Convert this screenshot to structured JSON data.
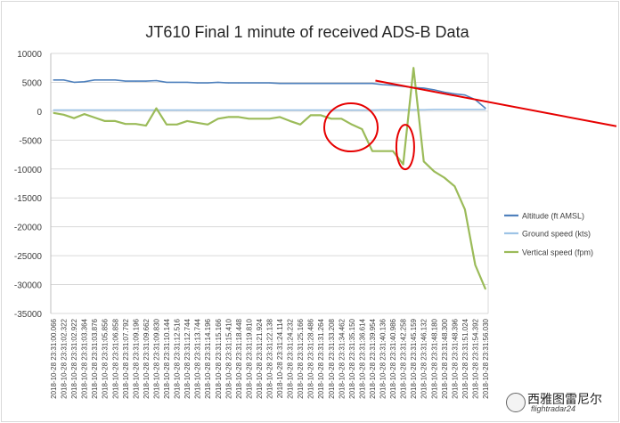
{
  "chart_data": {
    "type": "line",
    "title": "JT610 Final 1 minute of received ADS-B Data",
    "ylim": [
      -35000,
      10000
    ],
    "yticks": [
      10000,
      5000,
      0,
      -5000,
      -10000,
      -15000,
      -20000,
      -25000,
      -30000,
      -35000
    ],
    "grid": true,
    "legend_placement": "right",
    "categories": [
      "2018-10-28 23:31:00.066",
      "2018-10-28 23:31:02.322",
      "2018-10-28 23:31:02.922",
      "2018-10-28 23:31:03.364",
      "2018-10-28 23:31:03.876",
      "2018-10-28 23:31:05.856",
      "2018-10-28 23:31:06.858",
      "2018-10-28 23:31:07.792",
      "2018-10-28 23:31:09.196",
      "2018-10-28 23:31:09.662",
      "2018-10-28 23:31:09.830",
      "2018-10-28 23:31:10.144",
      "2018-10-28 23:31:12.516",
      "2018-10-28 23:31:12.744",
      "2018-10-28 23:31:13.744",
      "2018-10-28 23:31:14.196",
      "2018-10-28 23:31:15.166",
      "2018-10-28 23:31:15.410",
      "2018-10-28 23:31:18.448",
      "2018-10-28 23:31:19.810",
      "2018-10-28 23:31:21.924",
      "2018-10-28 23:31:22.138",
      "2018-10-28 23:31:24.114",
      "2018-10-28 23:31:24.232",
      "2018-10-28 23:31:25.166",
      "2018-10-28 23:31:28.486",
      "2018-10-28 23:31:31.264",
      "2018-10-28 23:31:33.208",
      "2018-10-28 23:31:34.462",
      "2018-10-28 23:31:35.150",
      "2018-10-28 23:31:36.614",
      "2018-10-28 23:31:39.954",
      "2018-10-28 23:31:40.136",
      "2018-10-28 23:31:40.986",
      "2018-10-28 23:31:42.258",
      "2018-10-28 23:31:45.159",
      "2018-10-28 23:31:46.132",
      "2018-10-28 23:31:48.180",
      "2018-10-28 23:31:48.300",
      "2018-10-28 23:31:48.396",
      "2018-10-28 23:31:51.024",
      "2018-10-28 23:31:54.392",
      "2018-10-28 23:31:56.030"
    ],
    "series": [
      {
        "name": "Altitude (ft AMSL)",
        "color": "#4f81bd",
        "values": [
          5400,
          5400,
          5000,
          5100,
          5400,
          5400,
          5400,
          5200,
          5200,
          5200,
          5300,
          5000,
          5000,
          5000,
          4900,
          4900,
          5000,
          4900,
          4900,
          4900,
          4900,
          4900,
          4800,
          4800,
          4800,
          4800,
          4800,
          4800,
          4800,
          4800,
          4800,
          4800,
          4600,
          4500,
          4300,
          4100,
          4000,
          3700,
          3300,
          3000,
          2800,
          2000,
          500
        ]
      },
      {
        "name": "Ground speed (kts)",
        "color": "#9dc3e6",
        "values": [
          200,
          200,
          200,
          200,
          200,
          200,
          200,
          200,
          200,
          200,
          200,
          200,
          200,
          200,
          200,
          200,
          200,
          200,
          200,
          200,
          200,
          200,
          200,
          200,
          200,
          200,
          200,
          200,
          200,
          200,
          200,
          200,
          250,
          250,
          250,
          250,
          250,
          300,
          300,
          300,
          300,
          300,
          300
        ]
      },
      {
        "name": "Vertical speed (fpm)",
        "color": "#9bbb59",
        "values": [
          -300,
          -600,
          -1200,
          -500,
          -1100,
          -1700,
          -1700,
          -2200,
          -2200,
          -2500,
          500,
          -2300,
          -2300,
          -1700,
          -2000,
          -2300,
          -1300,
          -1000,
          -1000,
          -1300,
          -1300,
          -1300,
          -1000,
          -1700,
          -2300,
          -700,
          -700,
          -1300,
          -1300,
          -2300,
          -3100,
          -6900,
          -6900,
          -6900,
          -9200,
          7500,
          -8700,
          -10400,
          -11500,
          -13000,
          -17000,
          -26600,
          -30800
        ]
      }
    ]
  },
  "annotations": {
    "trend_line_color": "#e60000",
    "circle_color": "#e60000"
  },
  "watermark": {
    "cn": "西雅图雷尼尔",
    "brand": "flightradar24"
  }
}
